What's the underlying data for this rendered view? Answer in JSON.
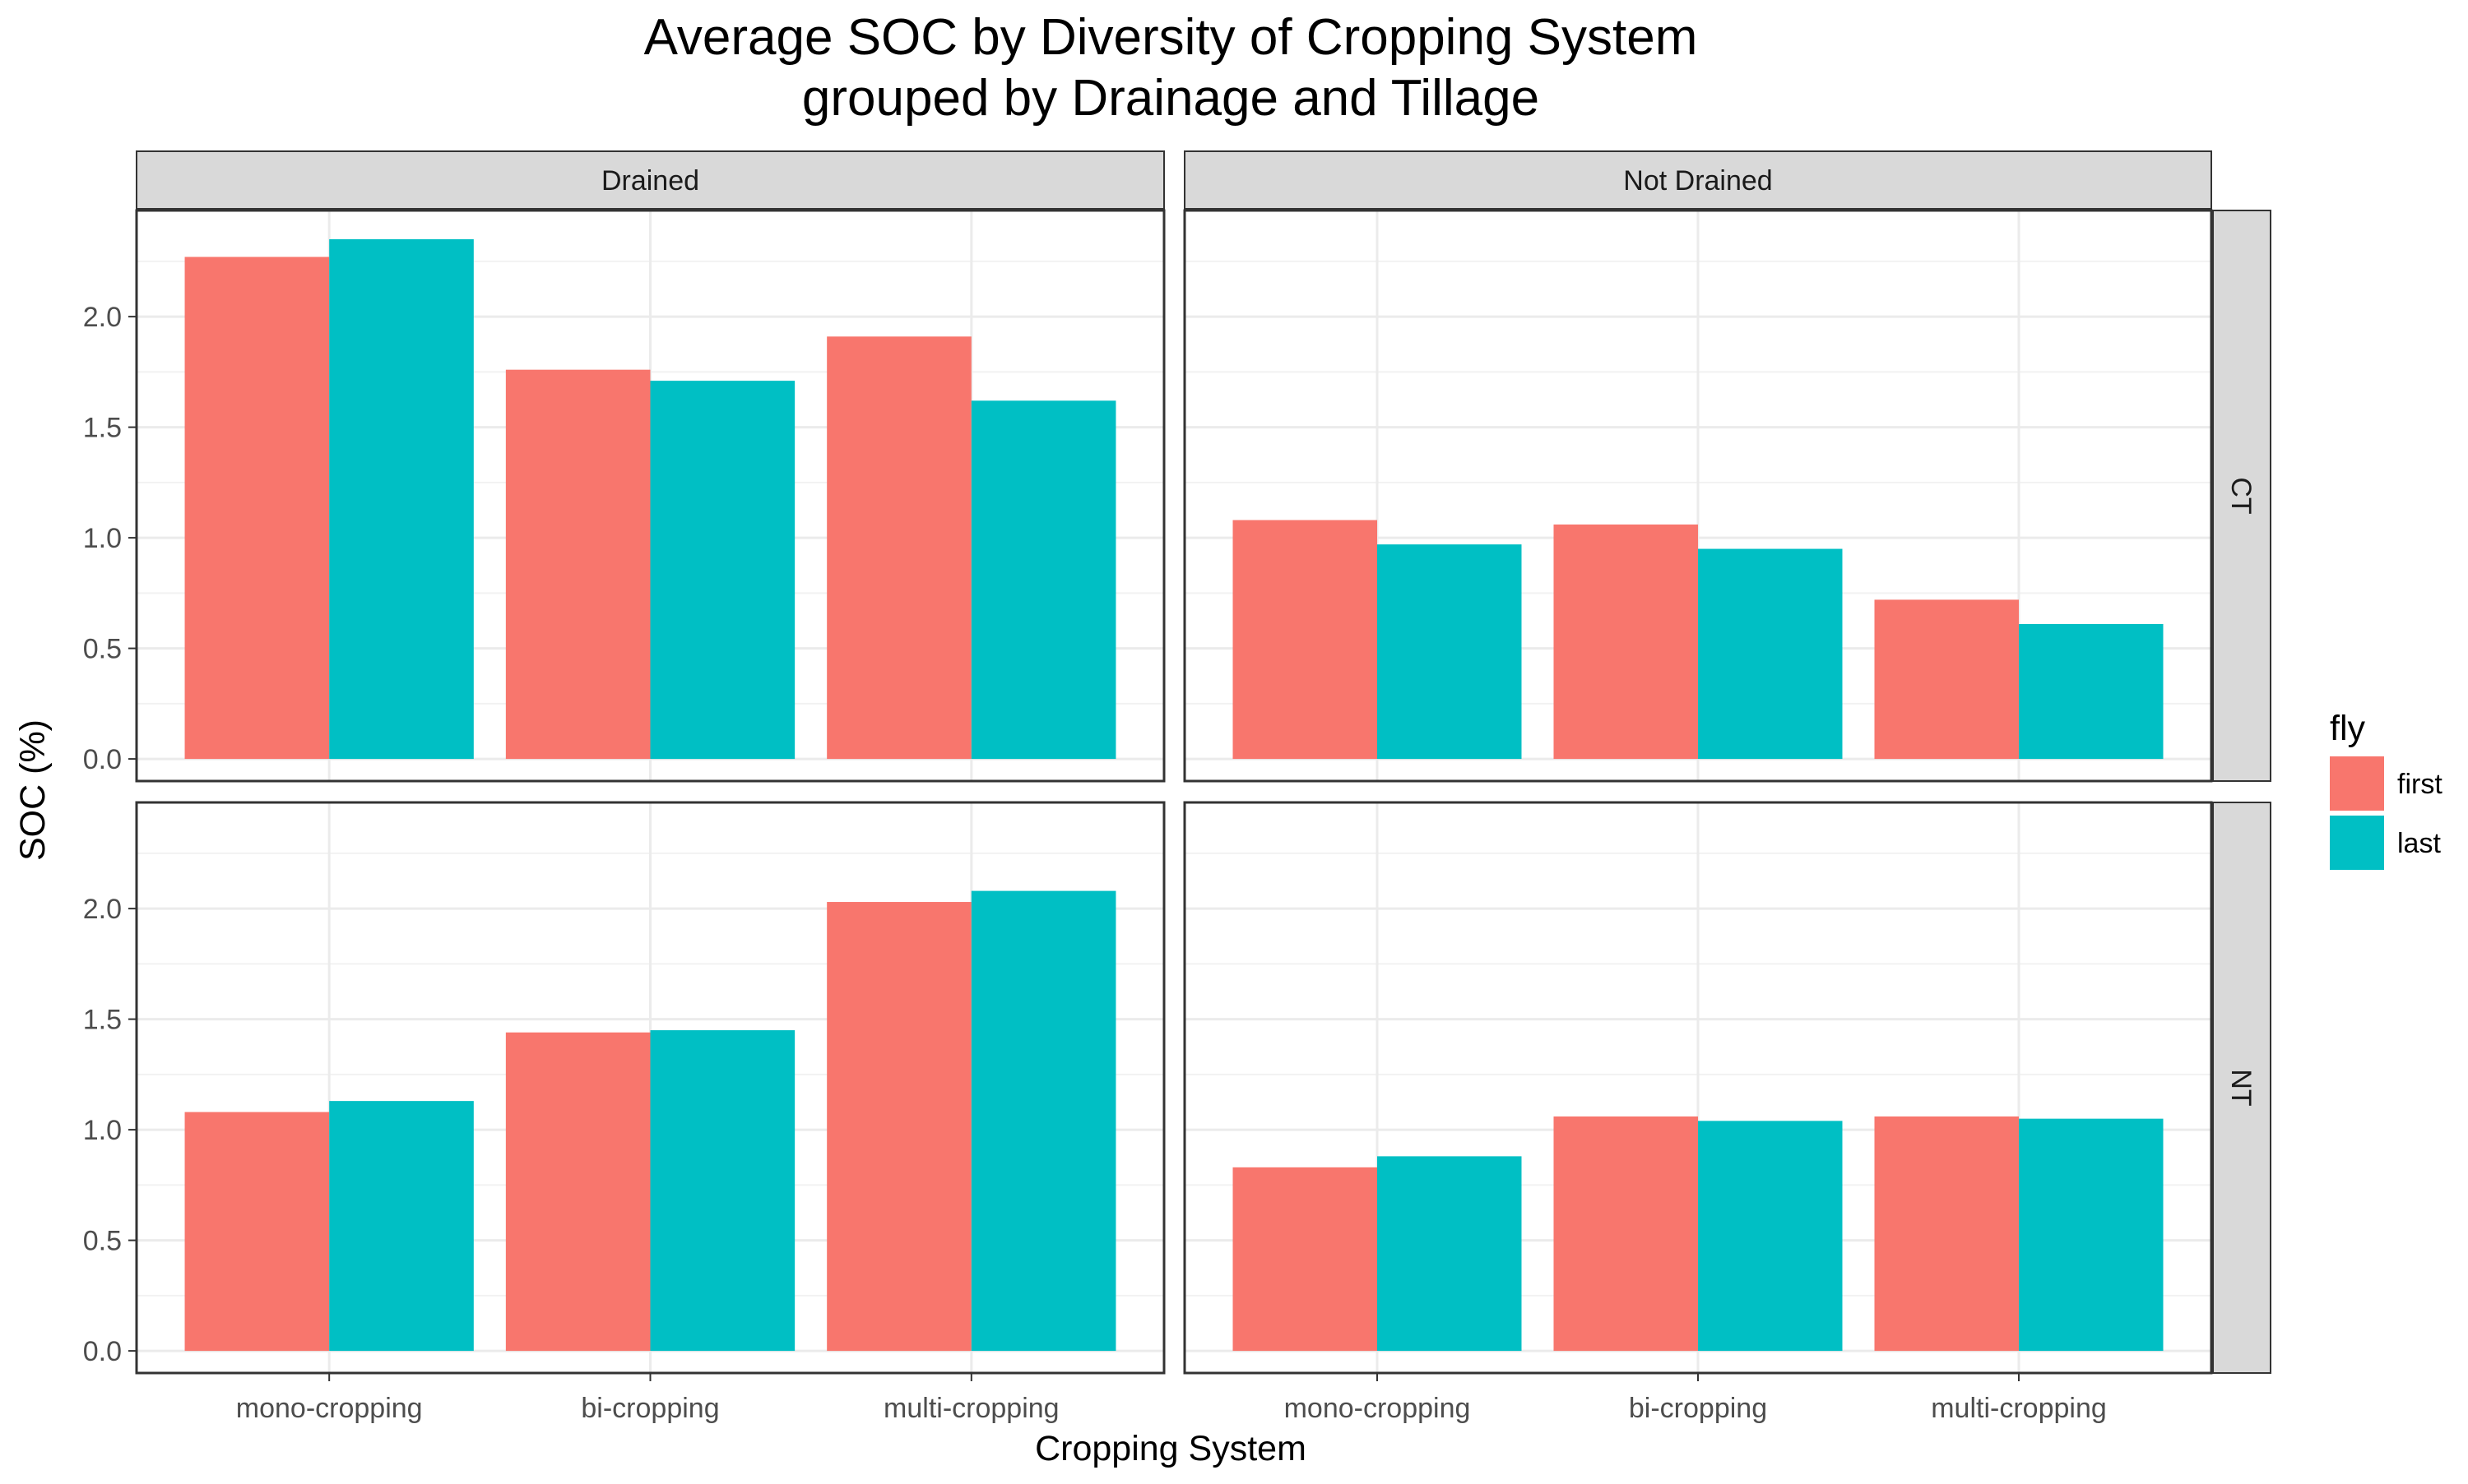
{
  "chart_data": {
    "type": "bar",
    "title_lines": [
      "Average SOC by Diversity of Cropping System",
      "grouped by Drainage and Tillage"
    ],
    "xlabel": "Cropping System",
    "ylabel": "SOC (%)",
    "categories": [
      "mono-cropping",
      "bi-cropping",
      "multi-cropping"
    ],
    "ylim": [
      -0.1,
      2.48
    ],
    "yticks": [
      0.0,
      0.5,
      1.0,
      1.5,
      2.0
    ],
    "ytick_labels": [
      "0.0",
      "0.5",
      "1.0",
      "1.5",
      "2.0"
    ],
    "grid": true,
    "legend": {
      "title": "fly",
      "placement": "right",
      "items": [
        {
          "label": "first",
          "color": "#F8766D"
        },
        {
          "label": "last",
          "color": "#00BFC4"
        }
      ]
    },
    "facet_columns": [
      "Drained",
      "Not Drained"
    ],
    "facet_rows": [
      "CT",
      "NT"
    ],
    "panels": [
      {
        "col": "Drained",
        "row": "CT",
        "series": [
          {
            "name": "first",
            "values": [
              2.27,
              1.76,
              1.91
            ]
          },
          {
            "name": "last",
            "values": [
              2.35,
              1.71,
              1.62
            ]
          }
        ]
      },
      {
        "col": "Not Drained",
        "row": "CT",
        "series": [
          {
            "name": "first",
            "values": [
              1.08,
              1.06,
              0.72
            ]
          },
          {
            "name": "last",
            "values": [
              0.97,
              0.95,
              0.61
            ]
          }
        ]
      },
      {
        "col": "Drained",
        "row": "NT",
        "series": [
          {
            "name": "first",
            "values": [
              1.08,
              1.44,
              2.03
            ]
          },
          {
            "name": "last",
            "values": [
              1.13,
              1.45,
              2.08
            ]
          }
        ]
      },
      {
        "col": "Not Drained",
        "row": "NT",
        "series": [
          {
            "name": "first",
            "values": [
              0.83,
              1.06,
              1.06
            ]
          },
          {
            "name": "last",
            "values": [
              0.88,
              1.04,
              1.05
            ]
          }
        ]
      }
    ]
  }
}
